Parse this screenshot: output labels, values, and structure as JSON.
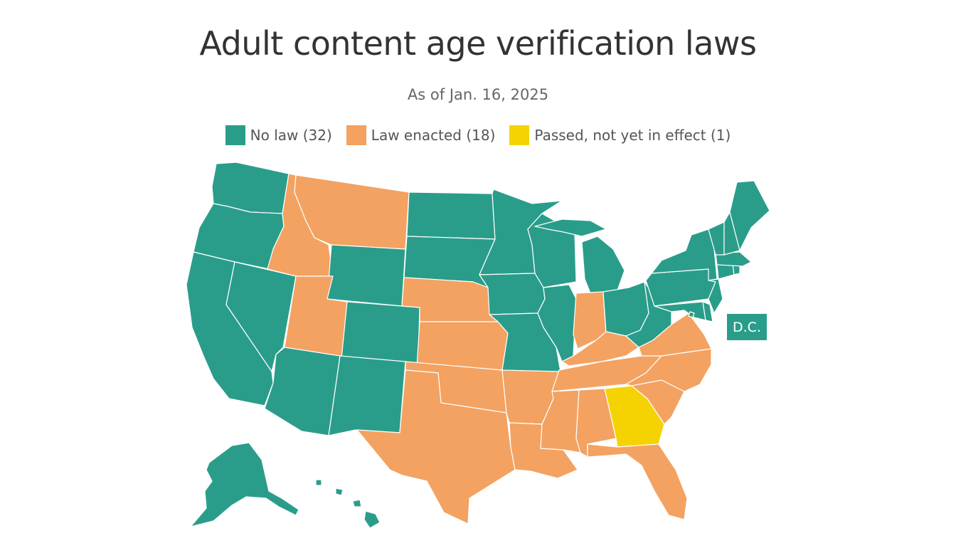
{
  "title": "Adult content age verification laws",
  "subtitle": "As of Jan. 16, 2025",
  "colors": {
    "no_law": "#2a9d8a",
    "law_enacted": "#f3a261",
    "passed_not_effective": "#f5d302"
  },
  "legend": [
    {
      "label": "No law (32)",
      "color": "#2a9d8a"
    },
    {
      "label": "Law enacted (18)",
      "color": "#f3a261"
    },
    {
      "label": "Passed, not yet in effect (1)",
      "color": "#f5d302"
    }
  ],
  "dc_label": "D.C.",
  "states": {
    "WA": "no_law",
    "OR": "no_law",
    "CA": "no_law",
    "NV": "no_law",
    "ID": "law_enacted",
    "MT": "law_enacted",
    "WY": "no_law",
    "UT": "law_enacted",
    "AZ": "no_law",
    "CO": "no_law",
    "NM": "no_law",
    "ND": "no_law",
    "SD": "no_law",
    "NE": "law_enacted",
    "KS": "law_enacted",
    "OK": "law_enacted",
    "TX": "law_enacted",
    "MN": "no_law",
    "IA": "no_law",
    "MO": "no_law",
    "AR": "law_enacted",
    "LA": "law_enacted",
    "WI": "no_law",
    "IL": "no_law",
    "MI": "no_law",
    "IN": "law_enacted",
    "OH": "no_law",
    "KY": "law_enacted",
    "TN": "law_enacted",
    "MS": "law_enacted",
    "AL": "law_enacted",
    "GA": "passed_not_effective",
    "FL": "law_enacted",
    "SC": "law_enacted",
    "NC": "law_enacted",
    "VA": "law_enacted",
    "WV": "no_law",
    "PA": "no_law",
    "NY": "no_law",
    "NJ": "no_law",
    "DE": "no_law",
    "MD": "no_law",
    "CT": "no_law",
    "RI": "no_law",
    "MA": "no_law",
    "VT": "no_law",
    "NH": "no_law",
    "ME": "no_law",
    "AK": "no_law",
    "HI": "no_law",
    "DC": "no_law"
  }
}
